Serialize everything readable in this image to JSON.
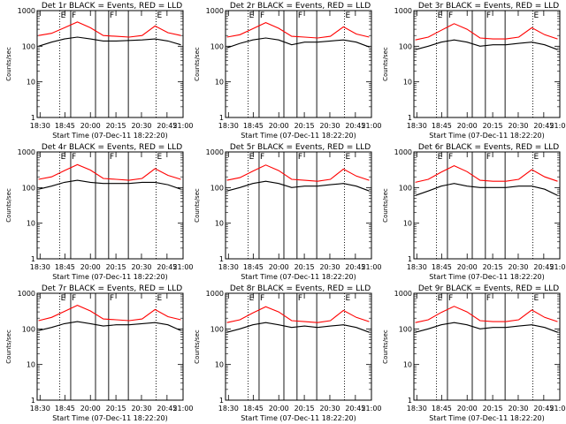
{
  "chart_data": {
    "type": "line",
    "y_scale": "log",
    "ylim": [
      1,
      1000
    ],
    "y_ticks": [
      "1",
      "10",
      "100",
      "1000"
    ],
    "x_tick_labels": [
      "18:30",
      "18:45",
      "20:00",
      "20:15",
      "20:30",
      "20:45",
      "21:00"
    ],
    "ylabel": "Counts/sec",
    "xlabel": "Start Time (07-Dec-11 18:22:20)",
    "line_markers": [
      {
        "label": "E",
        "style": "dotted"
      },
      {
        "label": "F",
        "style": "solid"
      },
      {
        "label": "",
        "style": "solid"
      },
      {
        "label": "F",
        "style": "solid"
      },
      {
        "label": "",
        "style": "solid"
      },
      {
        "label": "E",
        "style": "dotted"
      }
    ],
    "series_colors": {
      "events": "#000000",
      "lld": "#ff0000"
    },
    "panels": [
      {
        "title": "Det 1r BLACK = Events, RED = LLD",
        "red": [
          200,
          230,
          330,
          480,
          330,
          200,
          190,
          180,
          200,
          370,
          240,
          200
        ],
        "black": [
          100,
          130,
          160,
          180,
          160,
          140,
          140,
          145,
          150,
          160,
          140,
          110
        ]
      },
      {
        "title": "Det 2r BLACK = Events, RED = LLD",
        "red": [
          180,
          210,
          310,
          460,
          320,
          190,
          180,
          170,
          190,
          350,
          220,
          180
        ],
        "black": [
          90,
          120,
          150,
          170,
          150,
          110,
          130,
          130,
          140,
          150,
          130,
          95
        ]
      },
      {
        "title": "Det 3r BLACK = Events, RED = LLD",
        "red": [
          150,
          180,
          280,
          430,
          300,
          170,
          160,
          160,
          180,
          330,
          210,
          160
        ],
        "black": [
          80,
          100,
          130,
          150,
          130,
          100,
          110,
          110,
          120,
          130,
          110,
          80
        ]
      },
      {
        "title": "Det 4r BLACK = Events, RED = LLD",
        "red": [
          170,
          200,
          300,
          440,
          310,
          180,
          170,
          160,
          180,
          340,
          220,
          170
        ],
        "black": [
          90,
          110,
          140,
          160,
          140,
          130,
          130,
          130,
          140,
          140,
          120,
          90
        ]
      },
      {
        "title": "Det 5r BLACK = Events, RED = LLD",
        "red": [
          160,
          190,
          290,
          430,
          300,
          170,
          160,
          150,
          170,
          330,
          210,
          160
        ],
        "black": [
          80,
          100,
          130,
          150,
          130,
          100,
          110,
          110,
          120,
          130,
          110,
          80
        ]
      },
      {
        "title": "Det 6r BLACK = Events, RED = LLD",
        "red": [
          140,
          170,
          270,
          410,
          280,
          160,
          150,
          150,
          170,
          320,
          200,
          150
        ],
        "black": [
          60,
          80,
          110,
          130,
          110,
          100,
          100,
          100,
          110,
          110,
          90,
          60
        ]
      },
      {
        "title": "Det 7r BLACK = Events, RED = LLD",
        "red": [
          170,
          210,
          310,
          460,
          320,
          190,
          180,
          170,
          190,
          350,
          220,
          180
        ],
        "black": [
          90,
          110,
          140,
          160,
          140,
          120,
          130,
          130,
          140,
          150,
          130,
          90
        ]
      },
      {
        "title": "Det 8r BLACK = Events, RED = LLD",
        "red": [
          150,
          180,
          280,
          420,
          300,
          170,
          160,
          150,
          170,
          330,
          210,
          160
        ],
        "black": [
          80,
          100,
          130,
          150,
          130,
          110,
          120,
          110,
          120,
          130,
          110,
          80
        ]
      },
      {
        "title": "Det 9r BLACK = Events, RED = LLD",
        "red": [
          150,
          180,
          290,
          430,
          300,
          170,
          160,
          160,
          180,
          340,
          210,
          160
        ],
        "black": [
          80,
          100,
          130,
          150,
          130,
          100,
          110,
          110,
          120,
          130,
          110,
          80
        ]
      }
    ]
  }
}
